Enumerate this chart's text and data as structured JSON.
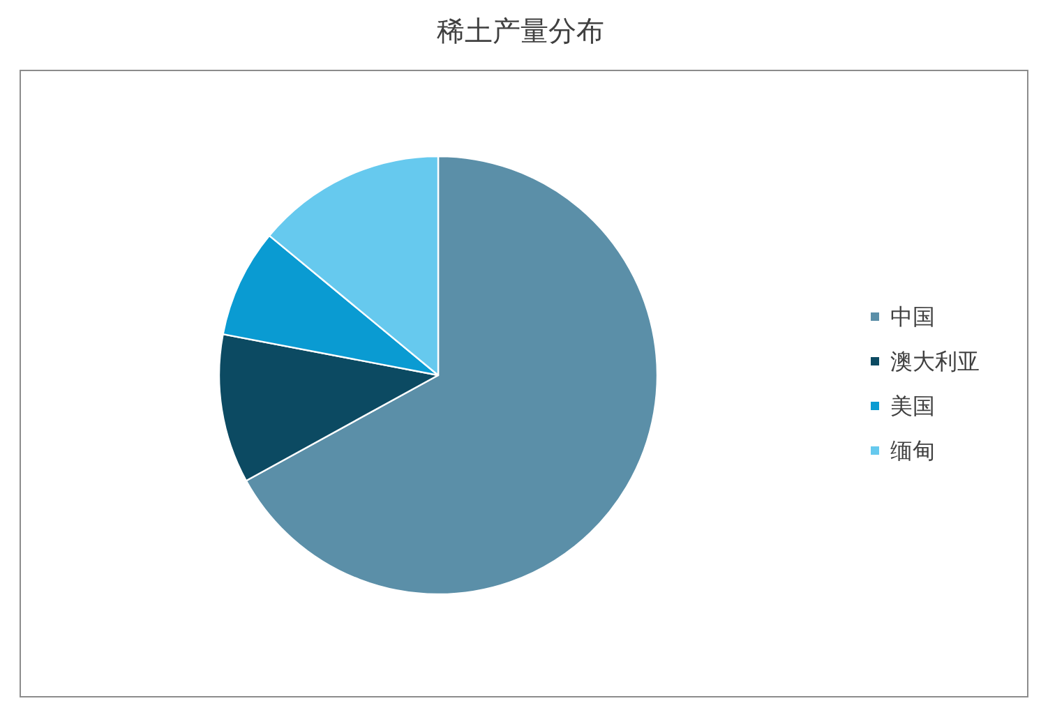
{
  "chart_data": {
    "type": "pie",
    "title": "稀土产量分布",
    "categories": [
      "中国",
      "澳大利亚",
      "美国",
      "缅甸"
    ],
    "values": [
      67,
      11,
      8,
      14
    ],
    "colors": [
      "#5b8fa8",
      "#0c4a62",
      "#0a9bd2",
      "#66c9ee"
    ],
    "legend": "right"
  }
}
